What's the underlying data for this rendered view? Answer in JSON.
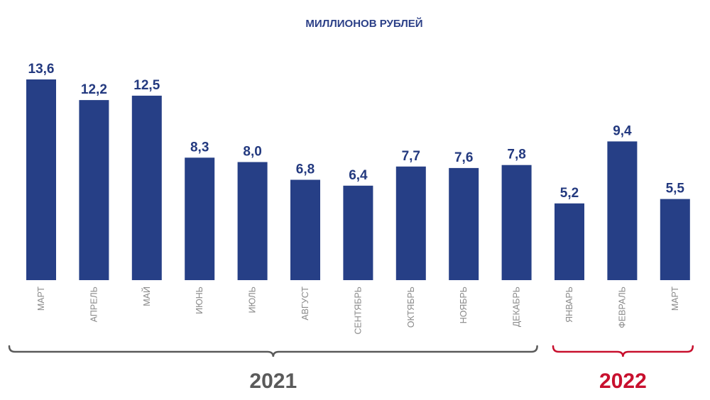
{
  "chart_data": {
    "type": "bar",
    "title": "МИЛЛИОНОВ РУБЛЕЙ",
    "categories": [
      "МАРТ",
      "АПРЕЛЬ",
      "МАЙ",
      "ИЮНЬ",
      "ИЮЛЬ",
      "АВГУСТ",
      "СЕНТЯБРЬ",
      "ОКТЯБРЬ",
      "НОЯБРЬ",
      "ДЕКАБРЬ",
      "ЯНВАРЬ",
      "ФЕВРАЛЬ",
      "МАРТ"
    ],
    "values": [
      13.6,
      12.2,
      12.5,
      8.3,
      8.0,
      6.8,
      6.4,
      7.7,
      7.6,
      7.8,
      5.2,
      9.4,
      5.5
    ],
    "value_labels": [
      "13,6",
      "12,2",
      "12,5",
      "8,3",
      "8,0",
      "6,8",
      "6,4",
      "7,7",
      "7,6",
      "7,8",
      "5,2",
      "9,4",
      "5,5"
    ],
    "groups": [
      {
        "label": "2021",
        "start": 0,
        "end": 9,
        "color": "#5a5a5a"
      },
      {
        "label": "2022",
        "start": 10,
        "end": 12,
        "color": "#c8102e"
      }
    ],
    "bar_color": "#263f86",
    "ylim": [
      0,
      13.6
    ],
    "grid": false,
    "legend": "none"
  }
}
